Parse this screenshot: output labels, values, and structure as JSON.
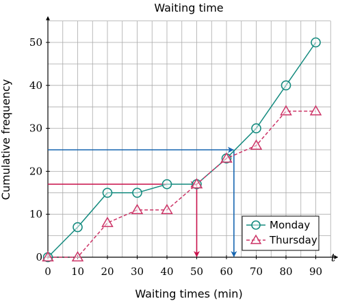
{
  "chart_data": {
    "type": "line",
    "title": "Waiting time",
    "xlabel": "Waiting times (min)",
    "ylabel": "Cumulative frequency",
    "x_var": "t",
    "xlim": [
      0,
      95
    ],
    "ylim": [
      0,
      55
    ],
    "x_ticks": [
      0,
      10,
      20,
      30,
      40,
      50,
      60,
      70,
      80,
      90
    ],
    "y_ticks": [
      0,
      10,
      20,
      30,
      40,
      50
    ],
    "x_grid_step": 5,
    "y_grid_step": 5,
    "grid": true,
    "legend_position": "bottom-right",
    "series": [
      {
        "name": "Monday",
        "color": "#138a7e",
        "marker": "circle",
        "line_style": "solid",
        "x": [
          0,
          10,
          20,
          30,
          40,
          50,
          60,
          70,
          80,
          90
        ],
        "values": [
          0,
          7,
          15,
          15,
          17,
          17,
          23,
          30,
          40,
          50
        ]
      },
      {
        "name": "Thursday",
        "color": "#cc3366",
        "marker": "triangle",
        "line_style": "dashed",
        "x": [
          0,
          10,
          20,
          30,
          40,
          50,
          60,
          70,
          80,
          90
        ],
        "values": [
          0,
          0,
          8,
          11,
          11,
          17,
          23,
          26,
          34,
          34
        ]
      }
    ],
    "annotations": [
      {
        "type": "readoff-arrow",
        "color": "#c8104a",
        "y": 17,
        "x": 50
      },
      {
        "type": "readoff-arrow",
        "color": "#1565b0",
        "y": 25,
        "x": 62.5
      }
    ]
  }
}
